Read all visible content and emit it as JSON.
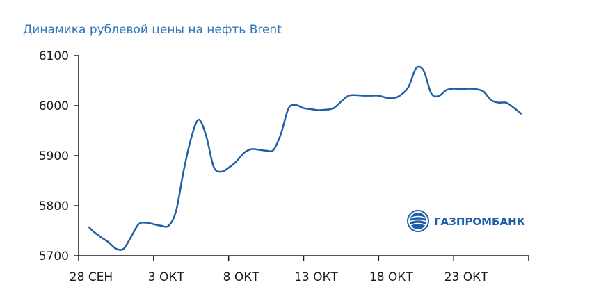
{
  "chart_data": {
    "type": "line",
    "title": "Динамика рублевой цены на нефть Brent",
    "xlabel": "",
    "ylabel": "",
    "ylim": [
      5700,
      6100
    ],
    "yticks": [
      5700,
      5800,
      5900,
      6000,
      6100
    ],
    "x_tick_labels": [
      "28 СЕН",
      "3 ОКТ",
      "8 ОКТ",
      "13 ОКТ",
      "18 ОКТ",
      "23 ОКТ"
    ],
    "x_tick_positions": [
      0,
      5,
      10,
      15,
      20,
      25
    ],
    "xlim": [
      0,
      30
    ],
    "grid": false,
    "series": [
      {
        "color": "#1f5fa8",
        "x": [
          0.7,
          1.0,
          1.5,
          2.0,
          2.5,
          3.0,
          3.5,
          4.0,
          4.5,
          5.0,
          5.5,
          6.0,
          6.5,
          7.0,
          7.5,
          8.0,
          8.5,
          9.0,
          9.5,
          10.0,
          10.5,
          11.0,
          11.5,
          12.0,
          12.5,
          13.0,
          13.5,
          14.0,
          14.5,
          15.0,
          15.5,
          16.0,
          16.5,
          17.0,
          17.5,
          18.0,
          18.5,
          19.0,
          19.5,
          20.0,
          20.5,
          21.0,
          21.5,
          22.0,
          22.5,
          23.0,
          23.5,
          24.0,
          24.5,
          25.0,
          25.5,
          26.0,
          26.5,
          27.0,
          27.5,
          28.0,
          28.5,
          29.0,
          29.5
        ],
        "y": [
          5757,
          5748,
          5737,
          5727,
          5714,
          5714,
          5738,
          5763,
          5766,
          5763,
          5760,
          5760,
          5790,
          5870,
          5935,
          5972,
          5940,
          5878,
          5868,
          5876,
          5888,
          5905,
          5913,
          5912,
          5910,
          5912,
          5945,
          5995,
          6001,
          5995,
          5993,
          5991,
          5992,
          5995,
          6008,
          6020,
          6021,
          6020,
          6020,
          6020,
          6016,
          6015,
          6022,
          6038,
          6075,
          6070,
          6025,
          6019,
          6031,
          6034,
          6033,
          6034,
          6033,
          6028,
          6011,
          6006,
          6006,
          5996,
          5984
        ]
      }
    ]
  },
  "logo": {
    "text": "ГАЗПРОМБАНК",
    "color": "#1f5fa8"
  }
}
